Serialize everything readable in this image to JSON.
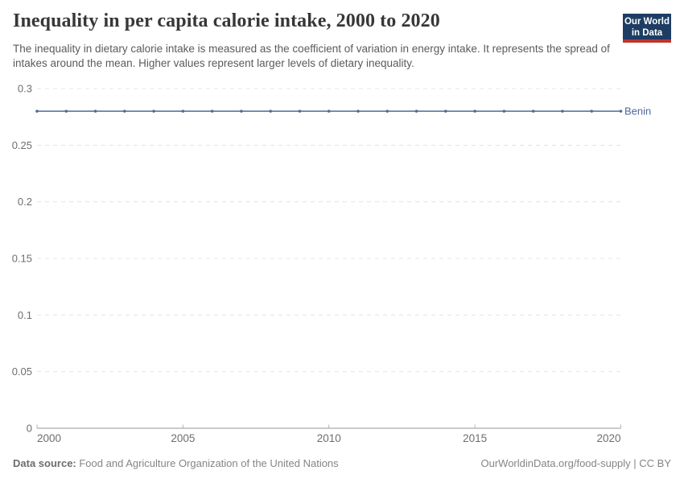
{
  "header": {
    "title": "Inequality in per capita calorie intake, 2000 to 2020",
    "subtitle": "The inequality in dietary calorie intake is measured as the coefficient of variation in energy intake. It represents the spread of intakes around the mean. Higher values represent larger levels of dietary inequality.",
    "logo": {
      "line1": "Our World",
      "line2": "in Data"
    }
  },
  "chart_data": {
    "type": "line",
    "title": "Inequality in per capita calorie intake, 2000 to 2020",
    "x": [
      2000,
      2001,
      2002,
      2003,
      2004,
      2005,
      2006,
      2007,
      2008,
      2009,
      2010,
      2011,
      2012,
      2013,
      2014,
      2015,
      2016,
      2017,
      2018,
      2019,
      2020
    ],
    "series": [
      {
        "name": "Benin",
        "color": "#4c6a9c",
        "values": [
          0.28,
          0.28,
          0.28,
          0.28,
          0.28,
          0.28,
          0.28,
          0.28,
          0.28,
          0.28,
          0.28,
          0.28,
          0.28,
          0.28,
          0.28,
          0.28,
          0.28,
          0.28,
          0.28,
          0.28,
          0.28
        ]
      }
    ],
    "xlabel": "",
    "ylabel": "",
    "ylim": [
      0,
      0.3
    ],
    "xlim": [
      2000,
      2020
    ],
    "yticks": [
      0,
      0.05,
      0.1,
      0.15,
      0.2,
      0.25,
      0.3
    ],
    "ytick_labels": [
      "0",
      "0.05",
      "0.1",
      "0.15",
      "0.2",
      "0.25",
      "0.3"
    ],
    "xticks": [
      2000,
      2005,
      2010,
      2015,
      2020
    ],
    "xtick_labels": [
      "2000",
      "2005",
      "2010",
      "2015",
      "2020"
    ],
    "grid": "horizontal-dashed",
    "legend_position": "end-of-line-label",
    "markers": true
  },
  "footer": {
    "datasource_label": "Data source:",
    "datasource_value": " Food and Agriculture Organization of the United Nations",
    "attribution": "OurWorldinData.org/food-supply | CC BY"
  },
  "colors": {
    "series_line": "#4c6a9c",
    "entity_label": "#4c6a9c",
    "gridline": "#e4e4e4",
    "axis_line": "#949494",
    "tick_mark": "#b3b3b3",
    "tick_label": "#6e6e6e",
    "title": "#373737",
    "subtitle": "#5b5b5b",
    "logo_bg": "#1d3d63",
    "logo_stripe": "#bf352f"
  }
}
